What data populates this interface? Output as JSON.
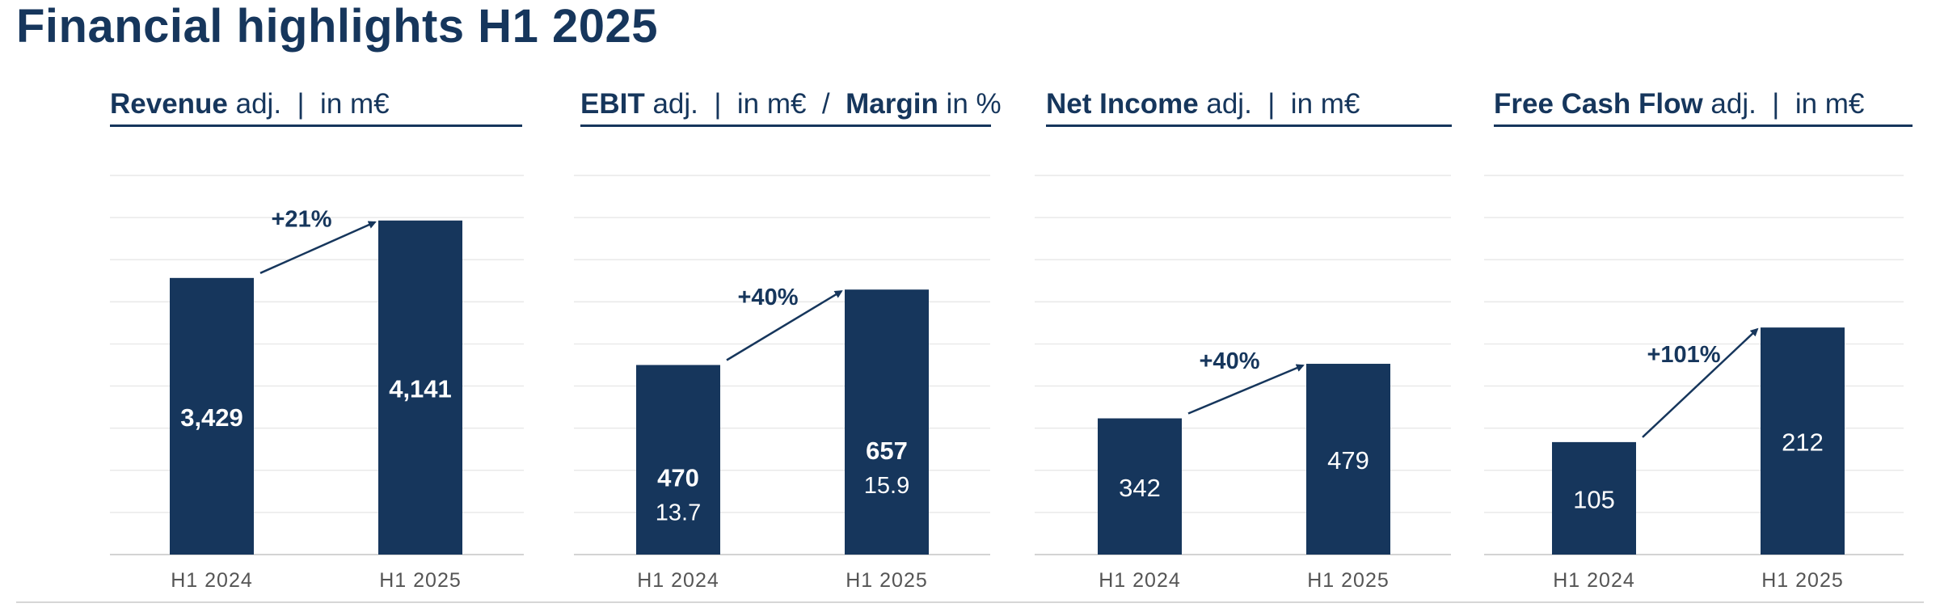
{
  "page": {
    "title": "Financial highlights H1 2025"
  },
  "colors": {
    "bar": "#16365c",
    "grid": "#e9e9e9",
    "axis": "#d3d3d3",
    "text": "#16365c",
    "tick": "#555555"
  },
  "chart_data": [
    {
      "type": "bar",
      "title_parts": [
        {
          "text": "Revenue",
          "bold": true
        },
        {
          "text": " adj.  |  in m€",
          "bold": false
        }
      ],
      "categories": [
        "H1 2024",
        "H1 2025"
      ],
      "values": [
        3429,
        4141
      ],
      "value_labels": [
        "3,429",
        "4,141"
      ],
      "ylim": [
        0,
        4700
      ],
      "change_label": "+21%"
    },
    {
      "type": "bar",
      "title_parts": [
        {
          "text": "EBIT",
          "bold": true
        },
        {
          "text": " adj.  |  in m€  /  ",
          "bold": false
        },
        {
          "text": "Margin",
          "bold": true
        },
        {
          "text": " in %",
          "bold": false
        }
      ],
      "categories": [
        "H1 2024",
        "H1 2025"
      ],
      "values": [
        470,
        657
      ],
      "value_labels": [
        "470",
        "657"
      ],
      "margin_values": [
        13.7,
        15.9
      ],
      "margin_labels": [
        "13.7",
        "15.9"
      ],
      "ylim": [
        0,
        940
      ],
      "change_label": "+40%"
    },
    {
      "type": "bar",
      "title_parts": [
        {
          "text": "Net Income",
          "bold": true
        },
        {
          "text": " adj.  |  in m€",
          "bold": false
        }
      ],
      "categories": [
        "H1 2024",
        "H1 2025"
      ],
      "values": [
        342,
        479
      ],
      "value_labels": [
        "342",
        "479"
      ],
      "ylim": [
        0,
        952
      ],
      "change_label": "+40%"
    },
    {
      "type": "bar",
      "title_parts": [
        {
          "text": "Free Cash Flow",
          "bold": true
        },
        {
          "text": " adj.  |  in m€",
          "bold": false
        }
      ],
      "categories": [
        "H1 2024",
        "H1 2025"
      ],
      "values": [
        105,
        212
      ],
      "value_labels": [
        "105",
        "212"
      ],
      "ylim": [
        0,
        354
      ],
      "change_label": "+101%"
    }
  ]
}
